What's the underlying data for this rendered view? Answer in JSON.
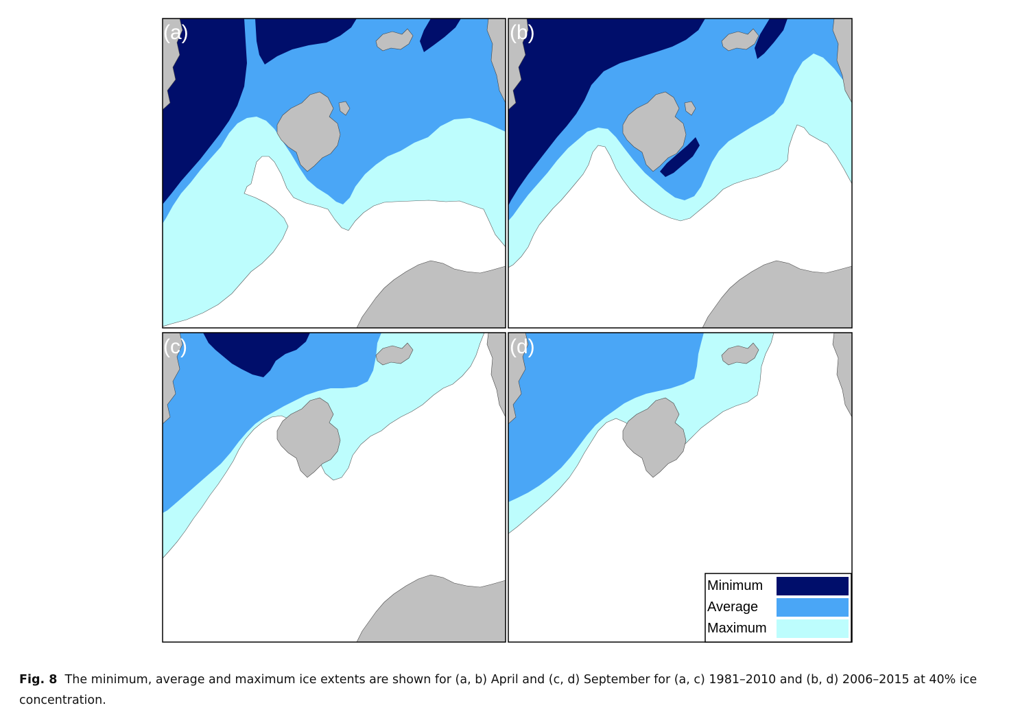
{
  "colors": {
    "minimum": "#000e6b",
    "average": "#4aa6f6",
    "maximum": "#bdfdfd",
    "land": "#c0c0c0",
    "open_water": "#ffffff",
    "coastline": "#444444"
  },
  "panels": [
    {
      "id": "a",
      "label": "(a)"
    },
    {
      "id": "b",
      "label": "(b)"
    },
    {
      "id": "c",
      "label": "(c)"
    },
    {
      "id": "d",
      "label": "(d)"
    }
  ],
  "legend": {
    "items": [
      {
        "label": "Minimum",
        "color": "#000e6b"
      },
      {
        "label": "Average",
        "color": "#4aa6f6"
      },
      {
        "label": "Maximum",
        "color": "#bdfdfd"
      }
    ]
  },
  "caption": {
    "figure_number": "Fig. 8",
    "text": "The minimum, average and maximum ice extents are shown for (a, b) April and (c, d) September for (a, c) 1981–2010 and (b, d) 2006–2015 at 40% ice concentration."
  }
}
